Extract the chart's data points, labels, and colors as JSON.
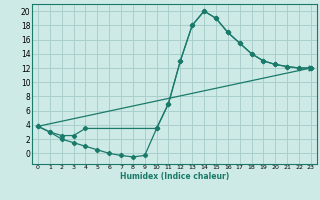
{
  "xlabel": "Humidex (Indice chaleur)",
  "background_color": "#ceeae7",
  "grid_color": "#aacfcc",
  "line_color": "#1a7a6a",
  "xlim": [
    -0.5,
    23.5
  ],
  "ylim": [
    -1.5,
    21
  ],
  "xticks": [
    0,
    1,
    2,
    3,
    4,
    5,
    6,
    7,
    8,
    9,
    10,
    11,
    12,
    13,
    14,
    15,
    16,
    17,
    18,
    19,
    20,
    21,
    22,
    23
  ],
  "yticks": [
    0,
    2,
    4,
    6,
    8,
    10,
    12,
    14,
    16,
    18,
    20
  ],
  "line1_x": [
    0,
    1,
    2,
    3,
    4,
    10,
    11,
    12,
    13,
    14,
    15,
    16,
    17,
    18,
    19,
    20,
    21,
    22,
    23
  ],
  "line1_y": [
    3.8,
    3.0,
    2.5,
    2.5,
    3.5,
    3.5,
    7.0,
    13.0,
    18.0,
    20.0,
    19.0,
    17.0,
    15.5,
    14.0,
    13.0,
    12.5,
    12.2,
    12.0,
    12.0
  ],
  "line2_x": [
    0,
    1,
    2,
    3,
    4,
    5,
    6,
    7,
    8,
    9,
    10,
    11,
    12,
    13,
    14,
    15,
    16,
    17,
    18,
    19,
    20,
    21,
    22,
    23
  ],
  "line2_y": [
    3.8,
    3.0,
    2.0,
    1.5,
    1.0,
    0.5,
    0.0,
    -0.3,
    -0.5,
    -0.3,
    3.5,
    7.0,
    13.0,
    18.0,
    20.0,
    19.0,
    17.0,
    15.5,
    14.0,
    13.0,
    12.5,
    12.2,
    12.0,
    12.0
  ],
  "line3_x": [
    0,
    23
  ],
  "line3_y": [
    3.8,
    12.0
  ]
}
